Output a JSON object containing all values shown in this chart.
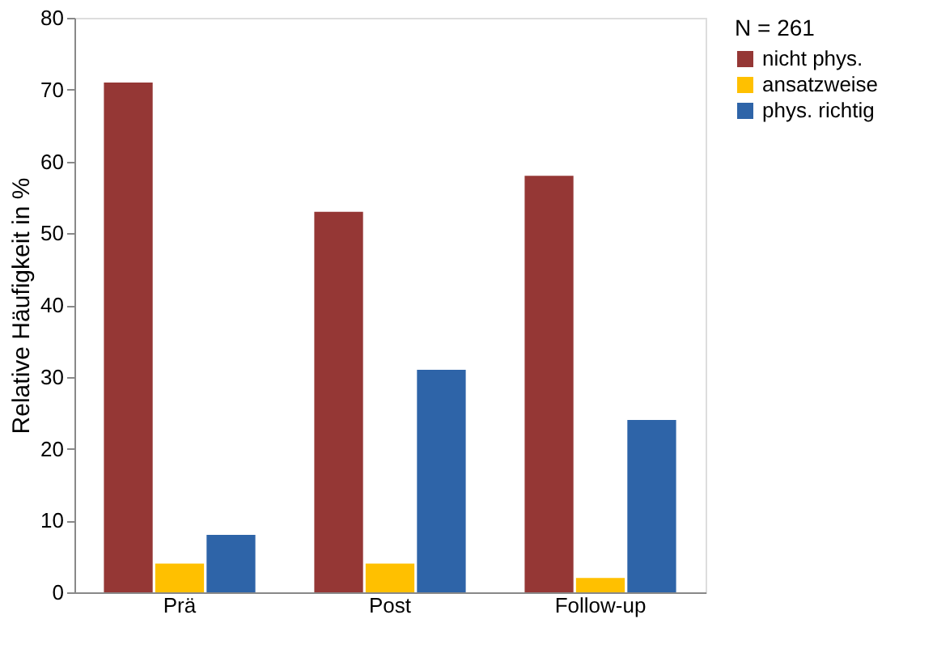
{
  "chart_data": {
    "type": "bar",
    "ylabel": "Relative Häufigkeit in %",
    "legend_title": "N = 261",
    "categories": [
      "Prä",
      "Post",
      "Follow-up"
    ],
    "series": [
      {
        "name": "nicht phys.",
        "color": "#953735",
        "values": [
          71,
          53,
          58
        ]
      },
      {
        "name": "ansatzweise",
        "color": "#ffc000",
        "values": [
          4,
          4,
          2
        ]
      },
      {
        "name": "phys. richtig",
        "color": "#2e64a8",
        "values": [
          8,
          31,
          24
        ]
      }
    ],
    "ylim": [
      0,
      80
    ],
    "yticks": [
      0,
      10,
      20,
      30,
      40,
      50,
      60,
      70,
      80
    ],
    "grid": false,
    "legend": "right"
  }
}
